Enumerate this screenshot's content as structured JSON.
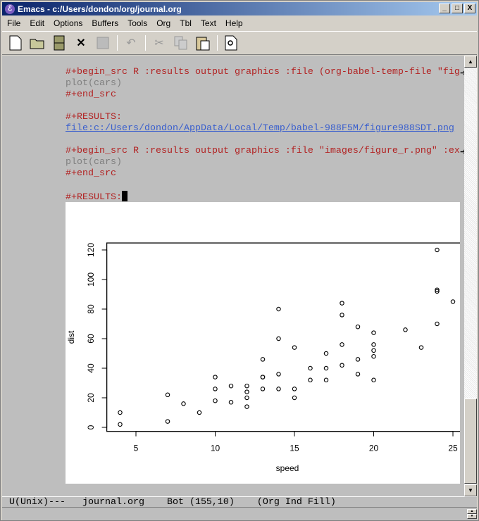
{
  "window": {
    "title": "Emacs - c:/Users/dondon/org/journal.org",
    "minimize": "_",
    "maximize": "□",
    "close": "X"
  },
  "menu": [
    "File",
    "Edit",
    "Options",
    "Buffers",
    "Tools",
    "Org",
    "Tbl",
    "Text",
    "Help"
  ],
  "toolbar": [
    "new-file",
    "open-folder",
    "dired-cabinet",
    "close-x",
    "save-disk",
    "undo",
    "cut",
    "copy",
    "paste",
    "search"
  ],
  "code": {
    "l1": "#+begin_src R :results output graphics :file (org-babel-temp-file \"fig",
    "l2": "plot(cars)",
    "l3": "#+end_src",
    "l4": "#+RESULTS:",
    "l5": "file:c:/Users/dondon/AppData/Local/Temp/babel-988F5M/figure988SDT.png",
    "l6": "#+begin_src R :results output graphics :file \"images/figure_r.png\" :ex",
    "l7": "plot(cars)",
    "l8": "#+end_src",
    "l9": "#+RESULTS:"
  },
  "modeline": "U(Unix)---   journal.org    Bot (155,10)    (Org Ind Fill)",
  "chart_data": {
    "type": "scatter",
    "xlabel": "speed",
    "ylabel": "dist",
    "xlim": [
      3.16,
      25.84
    ],
    "ylim": [
      -2.72,
      124.72
    ],
    "xticks": [
      5,
      10,
      15,
      20,
      25
    ],
    "yticks": [
      0,
      20,
      40,
      60,
      80,
      100,
      120
    ],
    "grid": false,
    "x": [
      4,
      4,
      7,
      7,
      8,
      9,
      10,
      10,
      10,
      11,
      11,
      12,
      12,
      12,
      12,
      13,
      13,
      13,
      13,
      14,
      14,
      14,
      14,
      15,
      15,
      15,
      16,
      16,
      17,
      17,
      17,
      18,
      18,
      18,
      18,
      19,
      19,
      19,
      20,
      20,
      20,
      20,
      20,
      22,
      23,
      24,
      24,
      24,
      24,
      25
    ],
    "y": [
      2,
      10,
      4,
      22,
      16,
      10,
      18,
      26,
      34,
      17,
      28,
      14,
      20,
      24,
      28,
      26,
      34,
      34,
      46,
      26,
      36,
      60,
      80,
      20,
      26,
      54,
      32,
      40,
      32,
      40,
      50,
      42,
      56,
      76,
      84,
      36,
      46,
      68,
      32,
      48,
      52,
      56,
      64,
      66,
      54,
      70,
      92,
      93,
      120,
      85
    ]
  }
}
